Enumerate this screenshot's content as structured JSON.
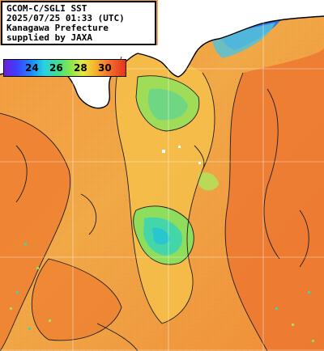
{
  "caption": {
    "line1": "GCOM-C/SGLI SST",
    "line2": "2025/07/25 01:33 (UTC)",
    "line3": "Kanagawa Prefecture",
    "line4": "supplied by JAXA"
  },
  "legend": {
    "ticks": [
      "24",
      "26",
      "28",
      "30"
    ]
  },
  "colors": {
    "land": "#ffffff",
    "warm_sea": "#f29238",
    "very_warm_sea": "#ee7a30",
    "mid_sea": "#f6c14b",
    "cool_sea": "#a9df55",
    "cooler_sea": "#51d9a1",
    "cold_sea": "#2f78e8",
    "contour": "#1d1d1d"
  }
}
